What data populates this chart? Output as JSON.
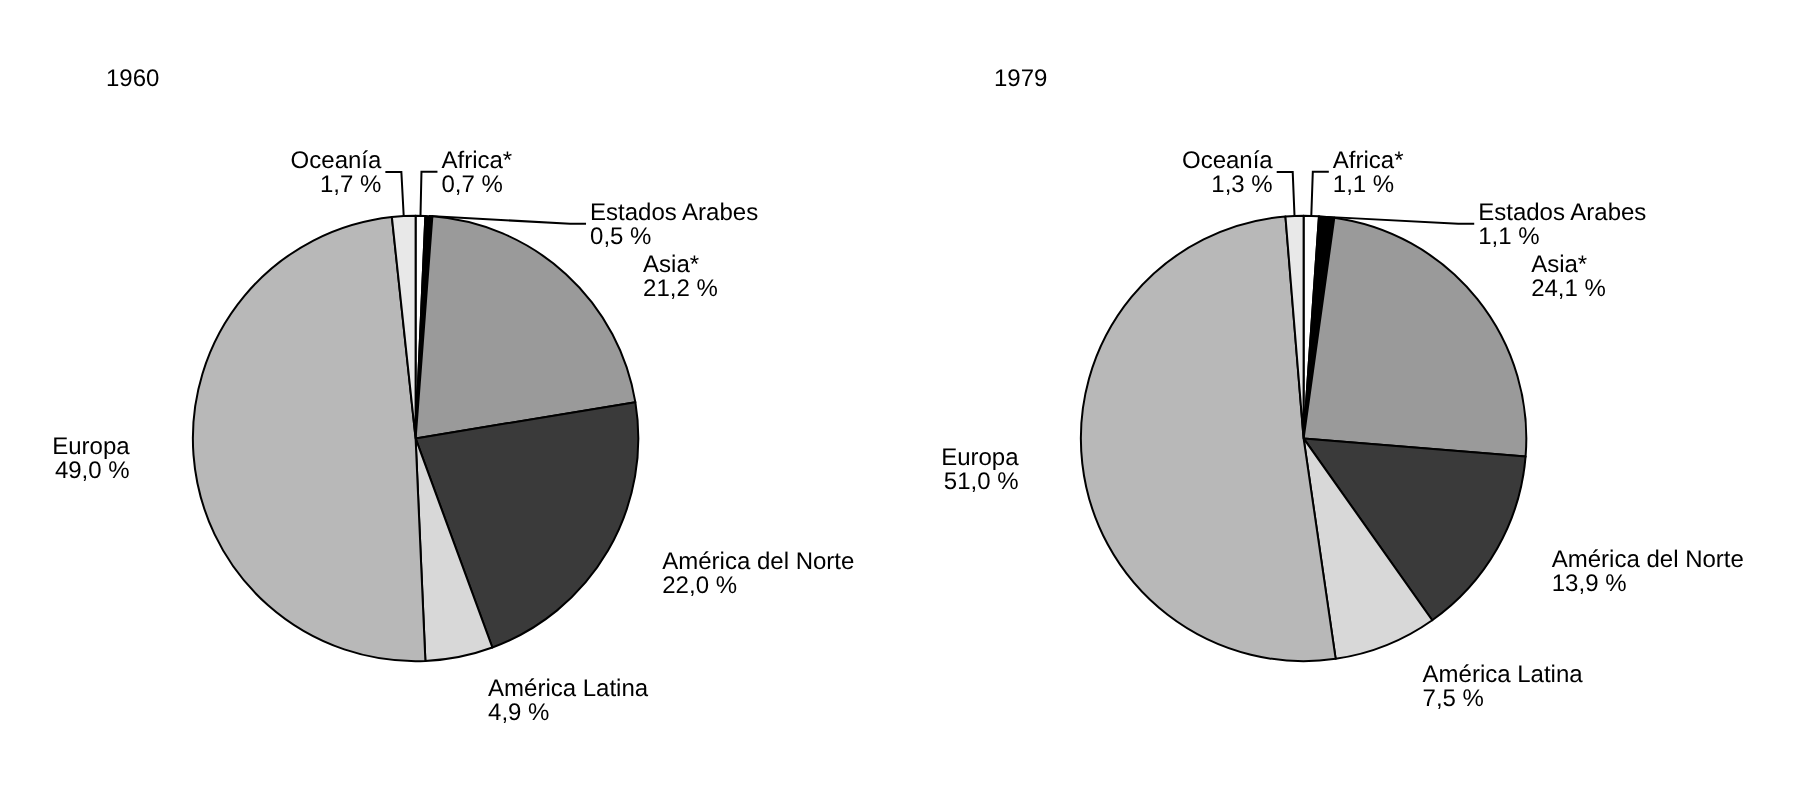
{
  "chart_data": [
    {
      "type": "pie",
      "title": "1960",
      "categories": [
        "Africa*",
        "Estados Arabes",
        "Asia*",
        "América del Norte",
        "América Latina",
        "Europa",
        "Oceanía"
      ],
      "values": [
        0.7,
        0.5,
        21.2,
        22.0,
        4.9,
        49.0,
        1.7
      ],
      "value_labels": [
        "0,7 %",
        "0,5 %",
        "21,2 %",
        "22,0 %",
        "4,9 %",
        "49,0 %",
        "1,7 %"
      ],
      "colors": [
        "#ffffff",
        "#000000",
        "#9a9a9a",
        "#3a3a3a",
        "#d8d8d8",
        "#b8b8b8",
        "#e8e8e8"
      ]
    },
    {
      "type": "pie",
      "title": "1979",
      "categories": [
        "Africa*",
        "Estados Arabes",
        "Asia*",
        "América del Norte",
        "América Latina",
        "Europa",
        "Oceanía"
      ],
      "values": [
        1.1,
        1.1,
        24.1,
        13.9,
        7.5,
        51.0,
        1.3
      ],
      "value_labels": [
        "1,1 %",
        "1,1 %",
        "24,1 %",
        "13,9 %",
        "7,5 %",
        "51,0 %",
        "1,3 %"
      ],
      "colors": [
        "#ffffff",
        "#000000",
        "#9a9a9a",
        "#3a3a3a",
        "#d8d8d8",
        "#b8b8b8",
        "#e8e8e8"
      ]
    }
  ]
}
